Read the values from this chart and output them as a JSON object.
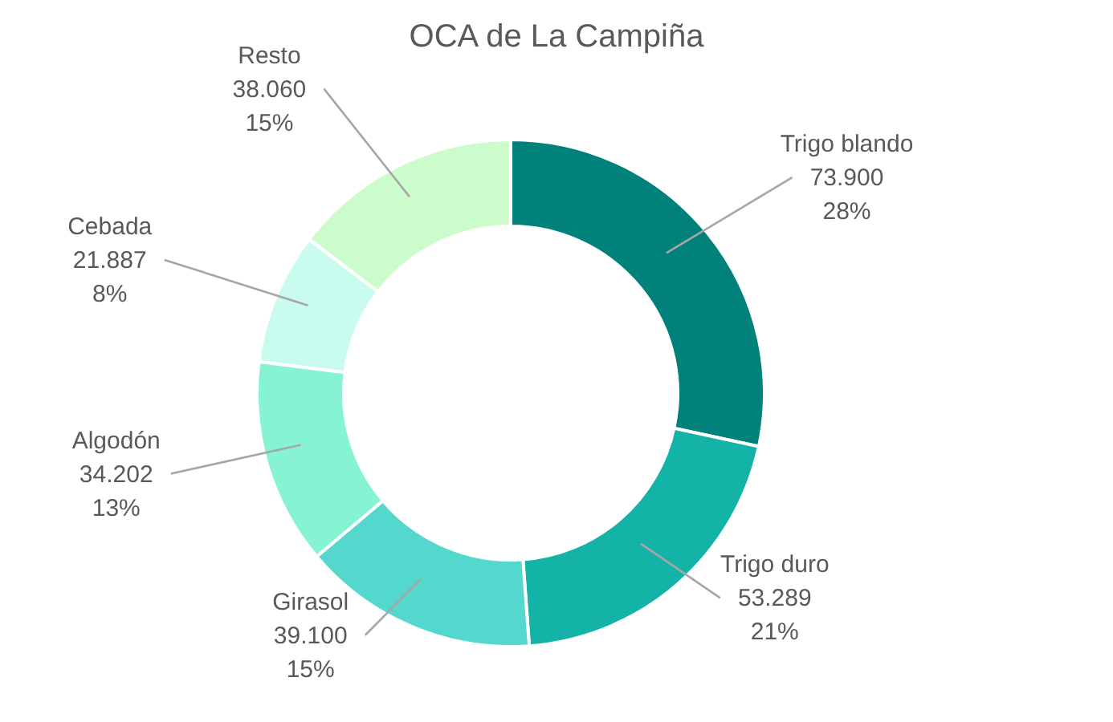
{
  "chart_data": {
    "type": "donut",
    "title": "OCA de La Campiña",
    "categories": [
      "Trigo blando",
      "Trigo duro",
      "Girasol",
      "Algodón",
      "Cebada",
      "Resto"
    ],
    "values": [
      73900,
      53289,
      39100,
      34202,
      21887,
      38060
    ],
    "colors": [
      "#00827a",
      "#13b3a7",
      "#54d8ce",
      "#86f3d3",
      "#c9fbee",
      "#cdfccc"
    ],
    "value_labels": [
      "73.900\n28%",
      "53.289\n21%",
      "39.100\n15%",
      "34.202\n13%",
      "21.887\n8%",
      "38.060\n15%"
    ],
    "legend": false
  }
}
